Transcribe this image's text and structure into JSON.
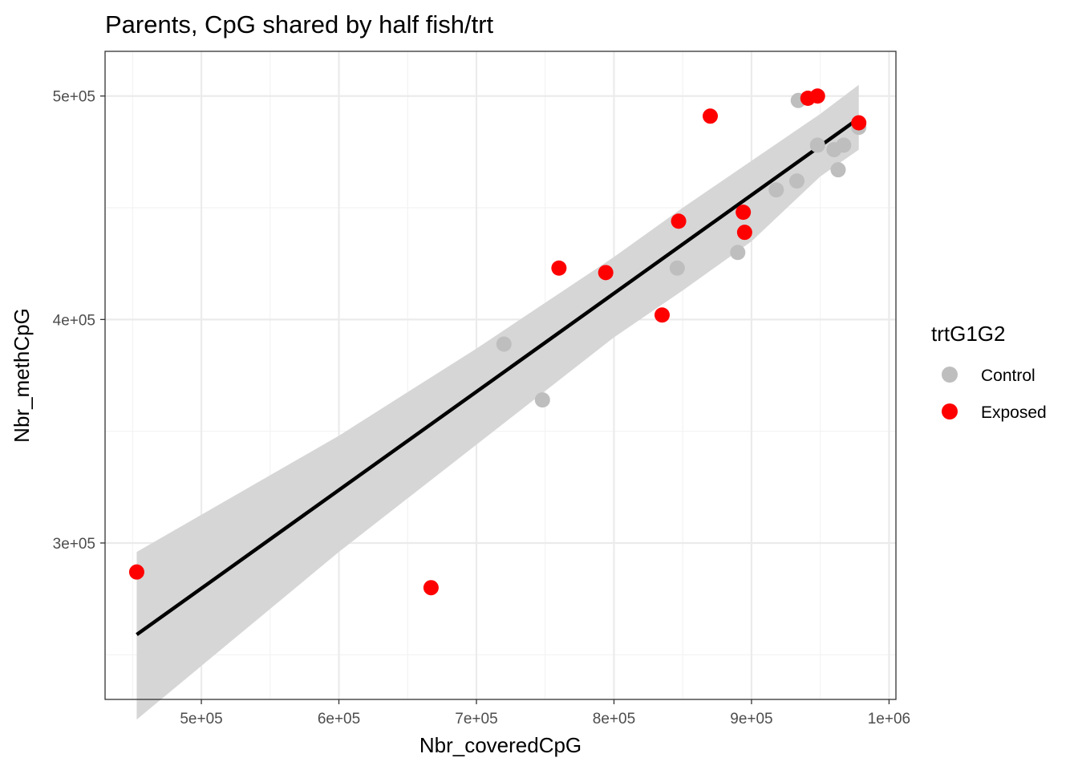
{
  "chart_data": {
    "type": "scatter",
    "title": "Parents, CpG shared by half fish/trt",
    "xlabel": "Nbr_coveredCpG",
    "ylabel": "Nbr_methCpG",
    "xlim": [
      430000,
      1005000
    ],
    "ylim": [
      230000,
      520000
    ],
    "x_ticks": [
      500000,
      600000,
      700000,
      800000,
      900000,
      1000000
    ],
    "x_tick_labels": [
      "5e+05",
      "6e+05",
      "7e+05",
      "8e+05",
      "9e+05",
      "1e+06"
    ],
    "y_ticks": [
      300000,
      400000,
      500000
    ],
    "y_tick_labels": [
      "3e+05",
      "4e+05",
      "5e+05"
    ],
    "grid": true,
    "legend": {
      "title": "trtG1G2",
      "position": "right",
      "entries": [
        "Control",
        "Exposed"
      ]
    },
    "series": [
      {
        "name": "Control",
        "color": "#bebebe",
        "points": [
          {
            "x": 720000,
            "y": 389000
          },
          {
            "x": 748000,
            "y": 364000
          },
          {
            "x": 846000,
            "y": 423000
          },
          {
            "x": 890000,
            "y": 430000
          },
          {
            "x": 918000,
            "y": 458000
          },
          {
            "x": 934000,
            "y": 498000
          },
          {
            "x": 933000,
            "y": 462000
          },
          {
            "x": 948000,
            "y": 478000
          },
          {
            "x": 960000,
            "y": 476000
          },
          {
            "x": 967000,
            "y": 478000
          },
          {
            "x": 963000,
            "y": 467000
          },
          {
            "x": 978000,
            "y": 486000
          }
        ]
      },
      {
        "name": "Exposed",
        "color": "#ff0000",
        "points": [
          {
            "x": 453000,
            "y": 287000
          },
          {
            "x": 667000,
            "y": 280000
          },
          {
            "x": 760000,
            "y": 423000
          },
          {
            "x": 794000,
            "y": 421000
          },
          {
            "x": 835000,
            "y": 402000
          },
          {
            "x": 847000,
            "y": 444000
          },
          {
            "x": 870000,
            "y": 491000
          },
          {
            "x": 894000,
            "y": 448000
          },
          {
            "x": 895000,
            "y": 439000
          },
          {
            "x": 941000,
            "y": 499000
          },
          {
            "x": 948000,
            "y": 500000
          },
          {
            "x": 978000,
            "y": 488000
          }
        ]
      }
    ],
    "fit": {
      "method": "linear",
      "color": "#000000",
      "band_color": "#d6d6d6",
      "line": [
        {
          "x": 453000,
          "y": 259000
        },
        {
          "x": 978000,
          "y": 490000
        }
      ],
      "band_upper": [
        {
          "x": 453000,
          "y": 296000
        },
        {
          "x": 600000,
          "y": 348000
        },
        {
          "x": 700000,
          "y": 387000
        },
        {
          "x": 800000,
          "y": 428000
        },
        {
          "x": 850000,
          "y": 450000
        },
        {
          "x": 900000,
          "y": 471000
        },
        {
          "x": 950000,
          "y": 492000
        },
        {
          "x": 978000,
          "y": 505000
        }
      ],
      "band_lower": [
        {
          "x": 453000,
          "y": 221000
        },
        {
          "x": 600000,
          "y": 296000
        },
        {
          "x": 700000,
          "y": 344000
        },
        {
          "x": 800000,
          "y": 392000
        },
        {
          "x": 850000,
          "y": 413000
        },
        {
          "x": 900000,
          "y": 435000
        },
        {
          "x": 950000,
          "y": 464000
        },
        {
          "x": 978000,
          "y": 476000
        }
      ]
    }
  }
}
